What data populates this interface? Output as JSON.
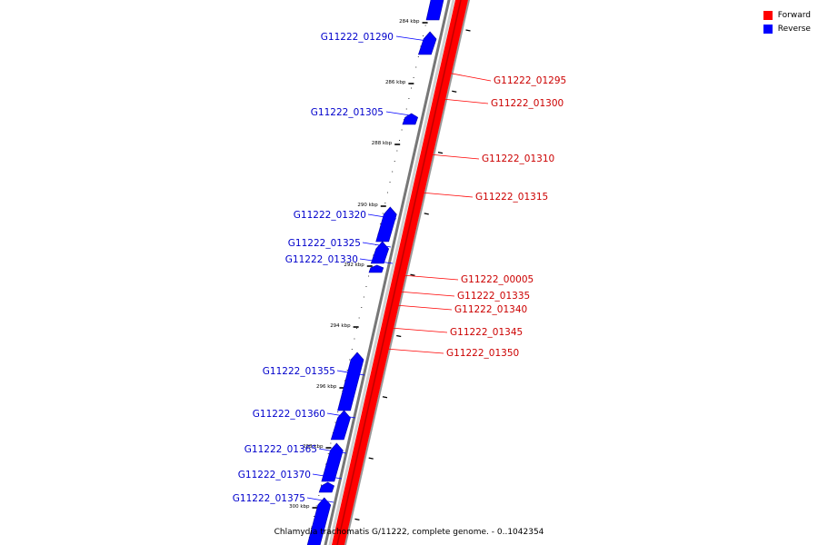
{
  "caption": "Chlamydia trachomatis G/11222, complete genome. - 0..1042354",
  "legend": [
    {
      "label": "Forward",
      "color": "#ff0000"
    },
    {
      "label": "Reverse",
      "color": "#0000ff"
    }
  ],
  "ticks": [
    "284 kbp",
    "286 kbp",
    "288 kbp",
    "290 kbp",
    "292 kbp",
    "294 kbp",
    "296 kbp",
    "298 kbp",
    "300 kbp"
  ],
  "forward_labels": [
    "G11222_01295",
    "G11222_01300",
    "G11222_01310",
    "G11222_01315",
    "G11222_00005",
    "G11222_01335",
    "G11222_01340",
    "G11222_01345",
    "G11222_01350"
  ],
  "reverse_labels": [
    "G11222_01290",
    "G11222_01305",
    "G11222_01320",
    "G11222_01325",
    "G11222_01330",
    "G11222_01355",
    "G11222_01360",
    "G11222_01365",
    "G11222_01370",
    "G11222_01375"
  ],
  "colors": {
    "forward": "#ff0000",
    "reverse": "#0000ff",
    "backbone": "#888888"
  }
}
